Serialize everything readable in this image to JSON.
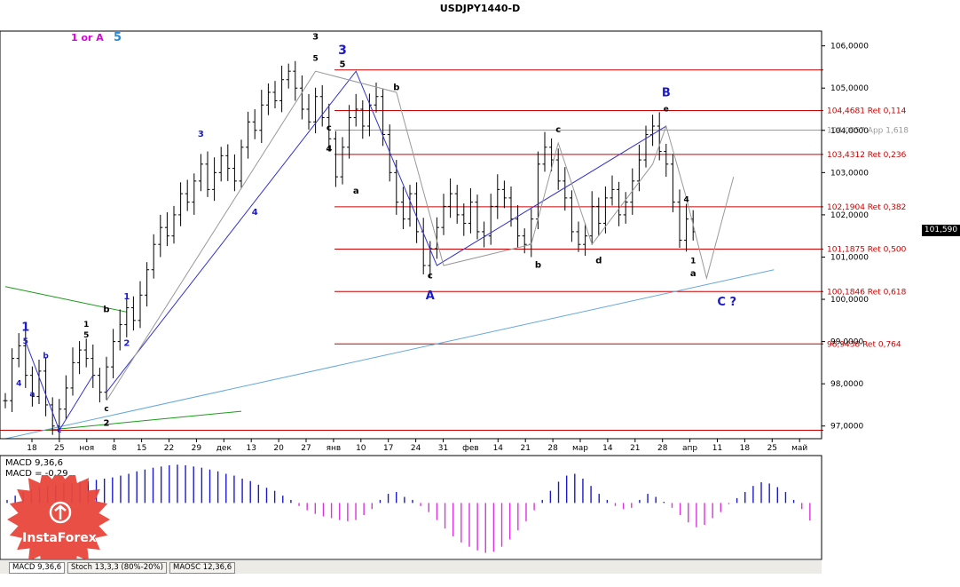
{
  "chart_data": {
    "type": "candlestick",
    "title": "USDJPY1440-D",
    "corner_labels": {
      "left": "1 or A",
      "right": "5"
    },
    "current_price": "101,590",
    "price_axis": {
      "ylim": [
        96.7,
        106.35
      ],
      "ticks": [
        {
          "value": 106.0,
          "label": "106,0000"
        },
        {
          "value": 105.0,
          "label": "105,0000"
        },
        {
          "value": 104.0,
          "label": "104,0000"
        },
        {
          "value": 103.0,
          "label": "103,0000"
        },
        {
          "value": 102.0,
          "label": "102,0000"
        },
        {
          "value": 101.0,
          "label": "101,0000"
        },
        {
          "value": 100.0,
          "label": "100,0000"
        },
        {
          "value": 99.0,
          "label": "99,0000"
        },
        {
          "value": 98.0,
          "label": "98,0000"
        },
        {
          "value": 97.0,
          "label": "97,0000"
        }
      ]
    },
    "time_axis": [
      "18",
      "25",
      "ноя",
      "8",
      "15",
      "22",
      "29",
      "дек",
      "13",
      "20",
      "27",
      "янв",
      "10",
      "17",
      "24",
      "31",
      "фев",
      "14",
      "21",
      "28",
      "мар",
      "14",
      "21",
      "28",
      "апр",
      "11",
      "18",
      "25",
      "май"
    ],
    "levels": [
      {
        "label": "",
        "value": 105.43,
        "color": "#cc0000"
      },
      {
        "label": "104,4681 Ret 0,114",
        "value": 104.4681,
        "color": "#cc0000"
      },
      {
        "label": "104,0057 App 1,618",
        "value": 104.0057,
        "color": "#999999"
      },
      {
        "label": "103,4312 Ret 0,236",
        "value": 103.4312,
        "color": "#cc0000"
      },
      {
        "label": "102,1904 Ret 0,382",
        "value": 102.1904,
        "color": "#cc0000"
      },
      {
        "label": "101,1875 Ret 0,500",
        "value": 101.1875,
        "color": "#cc0000"
      },
      {
        "label": "100,1846 Ret 0,618",
        "value": 100.1846,
        "color": "#cc0000"
      },
      {
        "label": "98,9438 Ret 0,764",
        "value": 98.9438,
        "color": "#cc0000"
      },
      {
        "label": "",
        "value": 96.9,
        "color": "#cc0000"
      }
    ],
    "price_path": [
      97.6,
      98.6,
      98.9,
      98.2,
      97.7,
      98.3,
      97.5,
      97.0,
      97.4,
      97.9,
      98.5,
      98.8,
      98.6,
      98.2,
      97.8,
      98.4,
      99.0,
      99.4,
      99.8,
      99.5,
      100.1,
      100.7,
      101.3,
      101.7,
      101.5,
      102.0,
      102.5,
      102.3,
      102.8,
      103.2,
      102.6,
      103.0,
      103.4,
      103.1,
      102.8,
      103.6,
      104.2,
      104.0,
      104.6,
      104.9,
      104.7,
      105.2,
      105.4,
      105.0,
      104.5,
      104.2,
      104.8,
      104.3,
      103.8,
      102.9,
      103.6,
      104.3,
      104.5,
      104.1,
      104.6,
      104.8,
      103.9,
      103.0,
      102.3,
      101.9,
      102.5,
      101.6,
      100.8,
      101.2,
      101.7,
      102.2,
      102.5,
      102.0,
      101.8,
      102.3,
      101.6,
      101.5,
      102.2,
      102.6,
      102.4,
      101.9,
      101.5,
      101.3,
      101.9,
      103.2,
      103.6,
      103.3,
      102.8,
      102.4,
      101.6,
      101.3,
      101.5,
      102.2,
      101.8,
      102.4,
      102.6,
      102.0,
      102.3,
      102.8,
      103.3,
      103.9,
      104.1,
      103.5,
      103.2,
      102.3,
      101.4,
      101.9,
      101.6
    ],
    "wave_labels": [
      {
        "text": "1",
        "d": 3,
        "p": 99.25,
        "color": "#1a1acc",
        "size": 13
      },
      {
        "text": "5",
        "d": 3,
        "p": 98.95,
        "color": "#1a1acc",
        "size": 9
      },
      {
        "text": "b",
        "d": 6,
        "p": 98.6,
        "color": "#1a1acc",
        "size": 9
      },
      {
        "text": "a",
        "d": 4,
        "p": 97.7,
        "color": "#1a1acc",
        "size": 9
      },
      {
        "text": "4",
        "d": 2,
        "p": 97.95,
        "color": "#1a1acc",
        "size": 9
      },
      {
        "text": "c",
        "d": 8,
        "p": 96.85,
        "color": "#1a1acc",
        "size": 9
      },
      {
        "text": "2",
        "d": 15,
        "p": 97.0,
        "color": "#000000",
        "size": 10
      },
      {
        "text": "c",
        "d": 15,
        "p": 97.35,
        "color": "#000000",
        "size": 9
      },
      {
        "text": "1",
        "d": 12,
        "p": 99.35,
        "color": "#000000",
        "size": 9
      },
      {
        "text": "5",
        "d": 12,
        "p": 99.1,
        "color": "#000000",
        "size": 9
      },
      {
        "text": "b",
        "d": 15,
        "p": 99.7,
        "color": "#000000",
        "size": 10
      },
      {
        "text": "1",
        "d": 18,
        "p": 100.0,
        "color": "#1a1acc",
        "size": 10
      },
      {
        "text": "2",
        "d": 18,
        "p": 98.9,
        "color": "#1a1acc",
        "size": 10
      },
      {
        "text": "3",
        "d": 29,
        "p": 103.85,
        "color": "#1a1acc",
        "size": 10
      },
      {
        "text": "4",
        "d": 37,
        "p": 102.0,
        "color": "#1a1acc",
        "size": 10
      },
      {
        "text": "3",
        "d": 46,
        "p": 106.15,
        "color": "#000000",
        "size": 10
      },
      {
        "text": "5",
        "d": 46,
        "p": 105.65,
        "color": "#000000",
        "size": 9
      },
      {
        "text": "3",
        "d": 50,
        "p": 105.8,
        "color": "#1a1acc",
        "size": 14
      },
      {
        "text": "5",
        "d": 50,
        "p": 105.5,
        "color": "#000000",
        "size": 10
      },
      {
        "text": "c",
        "d": 48,
        "p": 104.0,
        "color": "#000000",
        "size": 10
      },
      {
        "text": "4",
        "d": 48,
        "p": 103.5,
        "color": "#000000",
        "size": 10
      },
      {
        "text": "b",
        "d": 58,
        "p": 104.95,
        "color": "#000000",
        "size": 10
      },
      {
        "text": "a",
        "d": 52,
        "p": 102.5,
        "color": "#000000",
        "size": 10
      },
      {
        "text": "A",
        "d": 63,
        "p": 100.0,
        "color": "#1a1acc",
        "size": 13
      },
      {
        "text": "c",
        "d": 63,
        "p": 100.5,
        "color": "#000000",
        "size": 10
      },
      {
        "text": "c",
        "d": 82,
        "p": 103.95,
        "color": "#000000",
        "size": 10
      },
      {
        "text": "b",
        "d": 79,
        "p": 100.75,
        "color": "#000000",
        "size": 10
      },
      {
        "text": "d",
        "d": 88,
        "p": 100.85,
        "color": "#000000",
        "size": 10
      },
      {
        "text": "B",
        "d": 98,
        "p": 104.8,
        "color": "#1a1acc",
        "size": 13
      },
      {
        "text": "e",
        "d": 98,
        "p": 104.45,
        "color": "#000000",
        "size": 9
      },
      {
        "text": "4",
        "d": 101,
        "p": 102.3,
        "color": "#000000",
        "size": 9
      },
      {
        "text": "1",
        "d": 102,
        "p": 100.85,
        "color": "#000000",
        "size": 9
      },
      {
        "text": "a",
        "d": 102,
        "p": 100.55,
        "color": "#000000",
        "size": 10
      },
      {
        "text": "C ?",
        "d": 107,
        "p": 99.85,
        "color": "#1a1acc",
        "size": 13
      }
    ],
    "wave_paths": [
      {
        "color": "#3333cc",
        "points": [
          [
            3,
            99.0
          ],
          [
            8,
            96.9
          ],
          [
            13,
            98.2
          ]
        ]
      },
      {
        "color": "#3333cc",
        "points": [
          [
            15,
            97.8
          ],
          [
            52,
            105.4
          ],
          [
            64,
            100.8
          ],
          [
            98,
            104.1
          ]
        ]
      },
      {
        "color": "#999999",
        "points": [
          [
            15,
            97.6
          ],
          [
            46,
            105.4
          ],
          [
            58,
            104.9
          ],
          [
            65,
            100.8
          ],
          [
            78,
            101.3
          ],
          [
            82,
            103.7
          ],
          [
            87,
            101.3
          ],
          [
            96,
            103.2
          ],
          [
            98,
            104.1
          ],
          [
            101,
            102.4
          ],
          [
            104,
            100.5
          ],
          [
            108,
            102.9
          ]
        ]
      }
    ],
    "trend_lines": [
      {
        "color": "#66a8dd",
        "points": [
          [
            0,
            96.7
          ],
          [
            114,
            100.7
          ]
        ]
      },
      {
        "color": "#1a9c1a",
        "points": [
          [
            0,
            100.3
          ],
          [
            18,
            99.7
          ]
        ]
      },
      {
        "color": "#1a9c1a",
        "points": [
          [
            6,
            96.9
          ],
          [
            35,
            97.35
          ]
        ]
      }
    ],
    "indicator": {
      "name": "MACD 9,36,6",
      "value_label": "MACD = -0,29",
      "type": "histogram",
      "values": [
        0.05,
        0.12,
        0.18,
        0.22,
        0.26,
        0.28,
        0.3,
        0.32,
        0.33,
        0.35,
        0.36,
        0.38,
        0.4,
        0.42,
        0.45,
        0.48,
        0.52,
        0.55,
        0.58,
        0.6,
        0.62,
        0.63,
        0.62,
        0.6,
        0.58,
        0.55,
        0.52,
        0.48,
        0.45,
        0.4,
        0.36,
        0.3,
        0.25,
        0.2,
        0.12,
        0.05,
        -0.05,
        -0.12,
        -0.18,
        -0.22,
        -0.25,
        -0.28,
        -0.3,
        -0.28,
        -0.2,
        -0.1,
        0.05,
        0.15,
        0.18,
        0.1,
        0.05,
        -0.05,
        -0.15,
        -0.28,
        -0.42,
        -0.55,
        -0.65,
        -0.72,
        -0.78,
        -0.82,
        -0.8,
        -0.72,
        -0.6,
        -0.45,
        -0.3,
        -0.12,
        0.05,
        0.2,
        0.35,
        0.45,
        0.48,
        0.4,
        0.28,
        0.15,
        0.05,
        -0.05,
        -0.1,
        -0.08,
        0.05,
        0.15,
        0.1,
        0.02,
        -0.08,
        -0.2,
        -0.32,
        -0.4,
        -0.36,
        -0.25,
        -0.15,
        -0.02,
        0.08,
        0.18,
        0.28,
        0.34,
        0.32,
        0.26,
        0.18,
        0.05,
        -0.1,
        -0.29
      ],
      "ylim": [
        -0.9,
        0.75
      ]
    }
  },
  "tabs": [
    {
      "label": "MACD 9,36,6"
    },
    {
      "label": "Stoch 13,3,3 (80%-20%)"
    },
    {
      "label": "MAOSC 12,36,6"
    }
  ],
  "logo": {
    "text": "InstaForex",
    "color": "#e8463b"
  }
}
